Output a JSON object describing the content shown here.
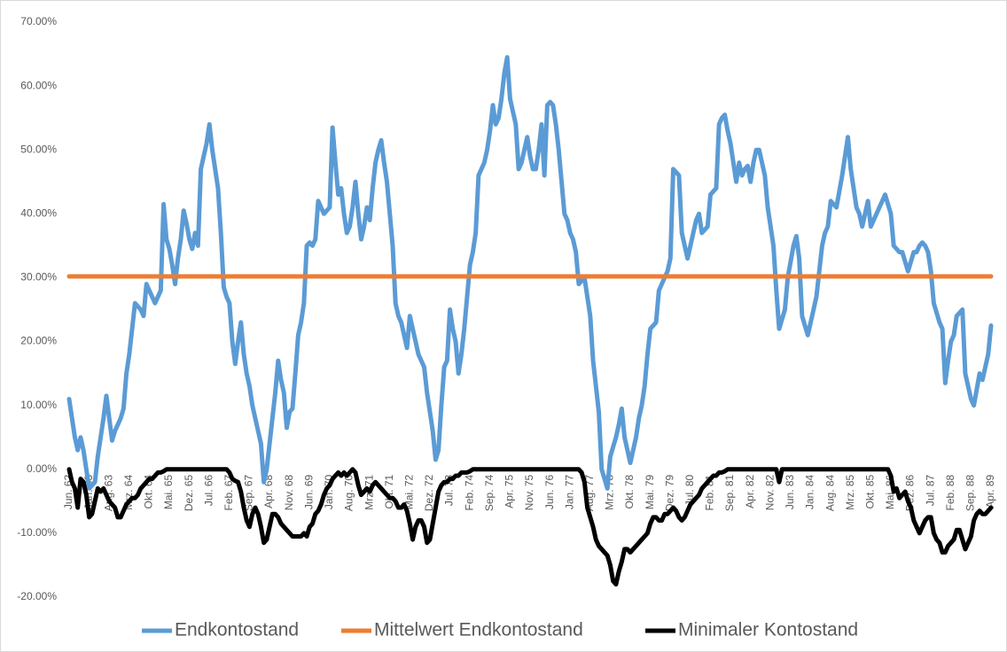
{
  "chart_data": {
    "type": "line",
    "categories": [
      "Jun. 62",
      null,
      null,
      null,
      null,
      null,
      null,
      "Jan. 63",
      null,
      null,
      null,
      null,
      null,
      null,
      "Aug. 63",
      null,
      null,
      null,
      null,
      null,
      null,
      "Mrz. 64",
      null,
      null,
      null,
      null,
      null,
      null,
      "Okt. 64",
      null,
      null,
      null,
      null,
      null,
      null,
      "Mai. 65",
      null,
      null,
      null,
      null,
      null,
      null,
      "Dez. 65",
      null,
      null,
      null,
      null,
      null,
      null,
      "Jul. 66",
      null,
      null,
      null,
      null,
      null,
      null,
      "Feb. 67",
      null,
      null,
      null,
      null,
      null,
      null,
      "Sep. 67",
      null,
      null,
      null,
      null,
      null,
      null,
      "Apr. 68",
      null,
      null,
      null,
      null,
      null,
      null,
      "Nov. 68",
      null,
      null,
      null,
      null,
      null,
      null,
      "Jun. 69",
      null,
      null,
      null,
      null,
      null,
      null,
      "Jan. 70",
      null,
      null,
      null,
      null,
      null,
      null,
      "Aug. 70",
      null,
      null,
      null,
      null,
      null,
      null,
      "Mrz. 71",
      null,
      null,
      null,
      null,
      null,
      null,
      "Okt. 71",
      null,
      null,
      null,
      null,
      null,
      null,
      "Mai. 72",
      null,
      null,
      null,
      null,
      null,
      null,
      "Dez. 72",
      null,
      null,
      null,
      null,
      null,
      null,
      "Jul. 73",
      null,
      null,
      null,
      null,
      null,
      null,
      "Feb. 74",
      null,
      null,
      null,
      null,
      null,
      null,
      "Sep. 74",
      null,
      null,
      null,
      null,
      null,
      null,
      "Apr. 75",
      null,
      null,
      null,
      null,
      null,
      null,
      "Nov. 75",
      null,
      null,
      null,
      null,
      null,
      null,
      "Jun. 76",
      null,
      null,
      null,
      null,
      null,
      null,
      "Jan. 77",
      null,
      null,
      null,
      null,
      null,
      null,
      "Aug. 77",
      null,
      null,
      null,
      null,
      null,
      null,
      "Mrz. 78",
      null,
      null,
      null,
      null,
      null,
      null,
      "Okt. 78",
      null,
      null,
      null,
      null,
      null,
      null,
      "Mai. 79",
      null,
      null,
      null,
      null,
      null,
      null,
      "Dez. 79",
      null,
      null,
      null,
      null,
      null,
      null,
      "Jul. 80",
      null,
      null,
      null,
      null,
      null,
      null,
      "Feb. 81",
      null,
      null,
      null,
      null,
      null,
      null,
      "Sep. 81",
      null,
      null,
      null,
      null,
      null,
      null,
      "Apr. 82",
      null,
      null,
      null,
      null,
      null,
      null,
      "Nov. 82",
      null,
      null,
      null,
      null,
      null,
      null,
      "Jun. 83",
      null,
      null,
      null,
      null,
      null,
      null,
      "Jan. 84",
      null,
      null,
      null,
      null,
      null,
      null,
      "Aug. 84",
      null,
      null,
      null,
      null,
      null,
      null,
      "Mrz. 85",
      null,
      null,
      null,
      null,
      null,
      null,
      "Okt. 85",
      null,
      null,
      null,
      null,
      null,
      null,
      "Mai. 86",
      null,
      null,
      null,
      null,
      null,
      null,
      "Dez. 86",
      null,
      null,
      null,
      null,
      null,
      null,
      "Jul. 87",
      null,
      null,
      null,
      null,
      null,
      null,
      "Feb. 88",
      null,
      null,
      null,
      null,
      null,
      null,
      "Sep. 88",
      null,
      null,
      null,
      null,
      null,
      null,
      "Apr. 89"
    ],
    "series": [
      {
        "name": "Endkontostand",
        "color": "#5b9bd5",
        "values": [
          11,
          8,
          5,
          3,
          5,
          3,
          0,
          -3,
          -2.5,
          -2,
          2,
          5,
          8,
          11.5,
          8,
          4.5,
          6,
          7,
          8,
          9.5,
          15,
          18,
          22,
          26,
          25.5,
          25,
          24,
          29,
          28,
          27,
          26,
          27,
          28,
          41.5,
          36,
          34.5,
          32,
          29,
          33,
          36,
          40.5,
          38.5,
          36,
          34.5,
          37,
          35,
          47,
          49,
          51,
          54,
          50,
          47,
          44,
          37,
          28.5,
          27,
          26,
          20,
          16.5,
          20,
          23,
          18,
          15,
          13,
          10,
          8,
          6,
          4,
          -2,
          0,
          4,
          8,
          12,
          17,
          14,
          12,
          6.5,
          9,
          9.5,
          15,
          21,
          23,
          26,
          35,
          35.5,
          35,
          36,
          42,
          41,
          40,
          40.5,
          41,
          53.5,
          48,
          43,
          44,
          40,
          37,
          38,
          41,
          45,
          40,
          36,
          38,
          41,
          39,
          44,
          48,
          50,
          51.5,
          48,
          45,
          40,
          35,
          26,
          24,
          23,
          21,
          19,
          24,
          22,
          20,
          18,
          17,
          16,
          12,
          9,
          6,
          1.5,
          3,
          10,
          16,
          17,
          25,
          22,
          20,
          15,
          18,
          22,
          27,
          32,
          34,
          37,
          46,
          47,
          48,
          50,
          53,
          57,
          54,
          55,
          58,
          62,
          64.5,
          58,
          56,
          54,
          47,
          48,
          50,
          52,
          49,
          47,
          47,
          50,
          54,
          46,
          57,
          57.5,
          57,
          54,
          50,
          45,
          40,
          39,
          37,
          36,
          34,
          29,
          29.5,
          30,
          27,
          24,
          17,
          13,
          9,
          0,
          -1.5,
          -3,
          2,
          3.5,
          5,
          7,
          9.5,
          5,
          3,
          1,
          3,
          5,
          8,
          10,
          13,
          18,
          22,
          22.5,
          23,
          28,
          29,
          30,
          31,
          33,
          47,
          46.5,
          46,
          37,
          35,
          33,
          35,
          37,
          39,
          40,
          37,
          37.5,
          38,
          43,
          43.5,
          44,
          54,
          55,
          55.5,
          53,
          51,
          48,
          45,
          48,
          46,
          47,
          47.5,
          45,
          48,
          50,
          50,
          48,
          46,
          41,
          38,
          35,
          28,
          22,
          23.5,
          25,
          30,
          32.5,
          35,
          36.5,
          33,
          24,
          22.5,
          21,
          23,
          25,
          27,
          31,
          35,
          37,
          38,
          42,
          41.5,
          41,
          43.5,
          46,
          49,
          52,
          47,
          44,
          41,
          40,
          38,
          40,
          42,
          38,
          39,
          40,
          41,
          42,
          43,
          41.5,
          40,
          35,
          34.5,
          34,
          34,
          32.5,
          31,
          32.5,
          34,
          34,
          35,
          35.5,
          35,
          34,
          31,
          26,
          24.5,
          23,
          22,
          13.5,
          17,
          20,
          21,
          24,
          24.5,
          25,
          15,
          13,
          11,
          10,
          12.5,
          15,
          14,
          16,
          18,
          22.5
        ]
      },
      {
        "name": "Mittelwert Endkontostand",
        "color": "#ed7d31",
        "values": [
          30.2,
          30.2,
          30.2,
          30.2,
          30.2,
          30.2,
          30.2,
          30.2,
          30.2,
          30.2,
          30.2,
          30.2,
          30.2,
          30.2,
          30.2,
          30.2,
          30.2,
          30.2,
          30.2,
          30.2,
          30.2,
          30.2,
          30.2,
          30.2,
          30.2,
          30.2,
          30.2,
          30.2,
          30.2,
          30.2,
          30.2,
          30.2,
          30.2,
          30.2,
          30.2,
          30.2,
          30.2,
          30.2,
          30.2,
          30.2,
          30.2,
          30.2,
          30.2,
          30.2,
          30.2,
          30.2,
          30.2,
          30.2,
          30.2,
          30.2,
          30.2,
          30.2,
          30.2,
          30.2,
          30.2,
          30.2,
          30.2,
          30.2,
          30.2,
          30.2,
          30.2,
          30.2,
          30.2,
          30.2,
          30.2,
          30.2,
          30.2,
          30.2,
          30.2,
          30.2,
          30.2,
          30.2,
          30.2,
          30.2,
          30.2,
          30.2,
          30.2,
          30.2,
          30.2,
          30.2,
          30.2,
          30.2,
          30.2,
          30.2,
          30.2,
          30.2,
          30.2,
          30.2,
          30.2,
          30.2,
          30.2,
          30.2,
          30.2,
          30.2,
          30.2,
          30.2,
          30.2,
          30.2,
          30.2,
          30.2,
          30.2,
          30.2,
          30.2,
          30.2,
          30.2,
          30.2,
          30.2,
          30.2,
          30.2,
          30.2,
          30.2,
          30.2,
          30.2,
          30.2,
          30.2,
          30.2,
          30.2,
          30.2,
          30.2,
          30.2,
          30.2,
          30.2,
          30.2,
          30.2,
          30.2,
          30.2,
          30.2,
          30.2,
          30.2,
          30.2,
          30.2,
          30.2,
          30.2,
          30.2,
          30.2,
          30.2,
          30.2,
          30.2,
          30.2,
          30.2,
          30.2,
          30.2,
          30.2,
          30.2,
          30.2,
          30.2,
          30.2,
          30.2,
          30.2,
          30.2,
          30.2,
          30.2,
          30.2,
          30.2,
          30.2,
          30.2,
          30.2,
          30.2,
          30.2,
          30.2,
          30.2,
          30.2,
          30.2,
          30.2,
          30.2,
          30.2,
          30.2,
          30.2,
          30.2,
          30.2,
          30.2,
          30.2,
          30.2,
          30.2,
          30.2,
          30.2,
          30.2,
          30.2,
          30.2,
          30.2,
          30.2,
          30.2,
          30.2,
          30.2,
          30.2,
          30.2,
          30.2,
          30.2,
          30.2,
          30.2,
          30.2,
          30.2,
          30.2,
          30.2,
          30.2,
          30.2,
          30.2,
          30.2,
          30.2,
          30.2,
          30.2,
          30.2,
          30.2,
          30.2,
          30.2,
          30.2,
          30.2,
          30.2,
          30.2,
          30.2,
          30.2,
          30.2,
          30.2,
          30.2,
          30.2,
          30.2,
          30.2,
          30.2,
          30.2,
          30.2,
          30.2,
          30.2,
          30.2,
          30.2,
          30.2,
          30.2,
          30.2,
          30.2,
          30.2,
          30.2,
          30.2,
          30.2,
          30.2,
          30.2,
          30.2,
          30.2,
          30.2,
          30.2,
          30.2,
          30.2,
          30.2,
          30.2,
          30.2,
          30.2,
          30.2,
          30.2,
          30.2,
          30.2,
          30.2,
          30.2,
          30.2,
          30.2,
          30.2,
          30.2,
          30.2,
          30.2,
          30.2,
          30.2,
          30.2,
          30.2,
          30.2,
          30.2,
          30.2,
          30.2,
          30.2,
          30.2,
          30.2,
          30.2,
          30.2,
          30.2,
          30.2,
          30.2,
          30.2,
          30.2,
          30.2,
          30.2,
          30.2,
          30.2,
          30.2,
          30.2,
          30.2,
          30.2,
          30.2,
          30.2,
          30.2,
          30.2,
          30.2,
          30.2,
          30.2,
          30.2,
          30.2,
          30.2,
          30.2,
          30.2,
          30.2,
          30.2,
          30.2,
          30.2,
          30.2,
          30.2,
          30.2,
          30.2,
          30.2,
          30.2,
          30.2,
          30.2,
          30.2,
          30.2,
          30.2,
          30.2,
          30.2,
          30.2,
          30.2,
          30.2,
          30.2,
          30.2,
          30.2,
          30.2,
          30.2,
          30.2,
          30.2,
          30.2,
          30.2
        ]
      },
      {
        "name": "Minimaler Kontostand",
        "color": "#000000",
        "values": [
          0,
          -2,
          -3,
          -6,
          -1.5,
          -2,
          -4,
          -7.5,
          -7,
          -5,
          -3,
          -3.5,
          -3,
          -4,
          -5,
          -5.5,
          -6,
          -7.5,
          -7.5,
          -6.5,
          -5.5,
          -5,
          -4.5,
          -4.5,
          -4,
          -3,
          -2.5,
          -2,
          -1.5,
          -1.5,
          -1,
          -0.5,
          -0.5,
          -0.3,
          0,
          0,
          0,
          0,
          0,
          0,
          0,
          0,
          0,
          0,
          0,
          0,
          0,
          0,
          0,
          0,
          0,
          0,
          0,
          0,
          0,
          0,
          -0.5,
          -1.5,
          -1.8,
          -2,
          -3.5,
          -6,
          -8,
          -9,
          -7,
          -6,
          -7,
          -9,
          -11.5,
          -11,
          -9,
          -7,
          -7,
          -7.5,
          -8.5,
          -9,
          -9.5,
          -10,
          -10.5,
          -10.5,
          -10.5,
          -10.5,
          -10,
          -10.5,
          -9,
          -8.5,
          -7,
          -6.5,
          -5.5,
          -4,
          -3,
          -2.5,
          -1.5,
          -1,
          -0.5,
          -1,
          -0.5,
          -1,
          -0.5,
          0,
          -0.5,
          -2.5,
          -4,
          -3.5,
          -3,
          -3.5,
          -2.5,
          -2,
          -2.5,
          -3,
          -3.5,
          -4,
          -4.5,
          -4.5,
          -5,
          -6,
          -6,
          -5.5,
          -6.5,
          -8.5,
          -11,
          -9,
          -8,
          -8,
          -9,
          -11.5,
          -11,
          -8.5,
          -6,
          -3.5,
          -2.5,
          -2,
          -2,
          -1.5,
          -1.5,
          -1,
          -1,
          -0.5,
          -0.5,
          -0.5,
          -0.3,
          0,
          0,
          0,
          0,
          0,
          0,
          0,
          0,
          0,
          0,
          0,
          0,
          0,
          0,
          0,
          0,
          0,
          0,
          0,
          0,
          0,
          0,
          0,
          0,
          0,
          0,
          0,
          0,
          0,
          0,
          0,
          0,
          0,
          0,
          0,
          0,
          0,
          0,
          -0.5,
          -2,
          -6,
          -7.5,
          -9,
          -11,
          -12,
          -12.5,
          -13,
          -13.5,
          -15,
          -17.5,
          -18,
          -16,
          -14.5,
          -12.5,
          -12.5,
          -13,
          -12.5,
          -12,
          -11.5,
          -11,
          -10.5,
          -10,
          -8.5,
          -7.5,
          -7.5,
          -8,
          -8,
          -7,
          -7,
          -6.5,
          -6,
          -6.5,
          -7.5,
          -8,
          -7.5,
          -6.5,
          -5.5,
          -5,
          -4.5,
          -4,
          -3,
          -2.5,
          -2,
          -1.5,
          -1,
          -1,
          -0.5,
          -0.5,
          -0.3,
          0,
          0,
          0,
          0,
          0,
          0,
          0,
          0,
          0,
          0,
          0,
          0,
          0,
          0,
          0,
          0,
          0,
          0,
          -2,
          0,
          0,
          0,
          0,
          0,
          0,
          0,
          0,
          0,
          0,
          0,
          0,
          0,
          0,
          0,
          0,
          0,
          0,
          0,
          0,
          0,
          0,
          0,
          0,
          0,
          0,
          0,
          0,
          0,
          0,
          0,
          0,
          0,
          0,
          0,
          0,
          0,
          0,
          -1,
          -3.5,
          -3,
          -4.5,
          -4,
          -3.5,
          -5,
          -6,
          -8,
          -9,
          -10,
          -9,
          -8,
          -7.5,
          -7.5,
          -10,
          -11,
          -11.5,
          -13,
          -13,
          -12,
          -11.5,
          -11,
          -9.5,
          -9.5,
          -11,
          -12.5,
          -11.5,
          -10.5,
          -8,
          -7,
          -6.5,
          -7,
          -7,
          -6.5,
          -6
        ]
      }
    ],
    "ylim": [
      -20,
      70
    ],
    "yticks": [
      {
        "value": -20,
        "label": "-20.00%"
      },
      {
        "value": -10,
        "label": "-10.00%"
      },
      {
        "value": 0,
        "label": "0.00%"
      },
      {
        "value": 10,
        "label": "10.00%"
      },
      {
        "value": 20,
        "label": "20.00%"
      },
      {
        "value": 30,
        "label": "30.00%"
      },
      {
        "value": 40,
        "label": "40.00%"
      },
      {
        "value": 50,
        "label": "50.00%"
      },
      {
        "value": 60,
        "label": "60.00%"
      },
      {
        "value": 70,
        "label": "70.00%"
      }
    ],
    "grid": false,
    "legend": "bottom"
  }
}
